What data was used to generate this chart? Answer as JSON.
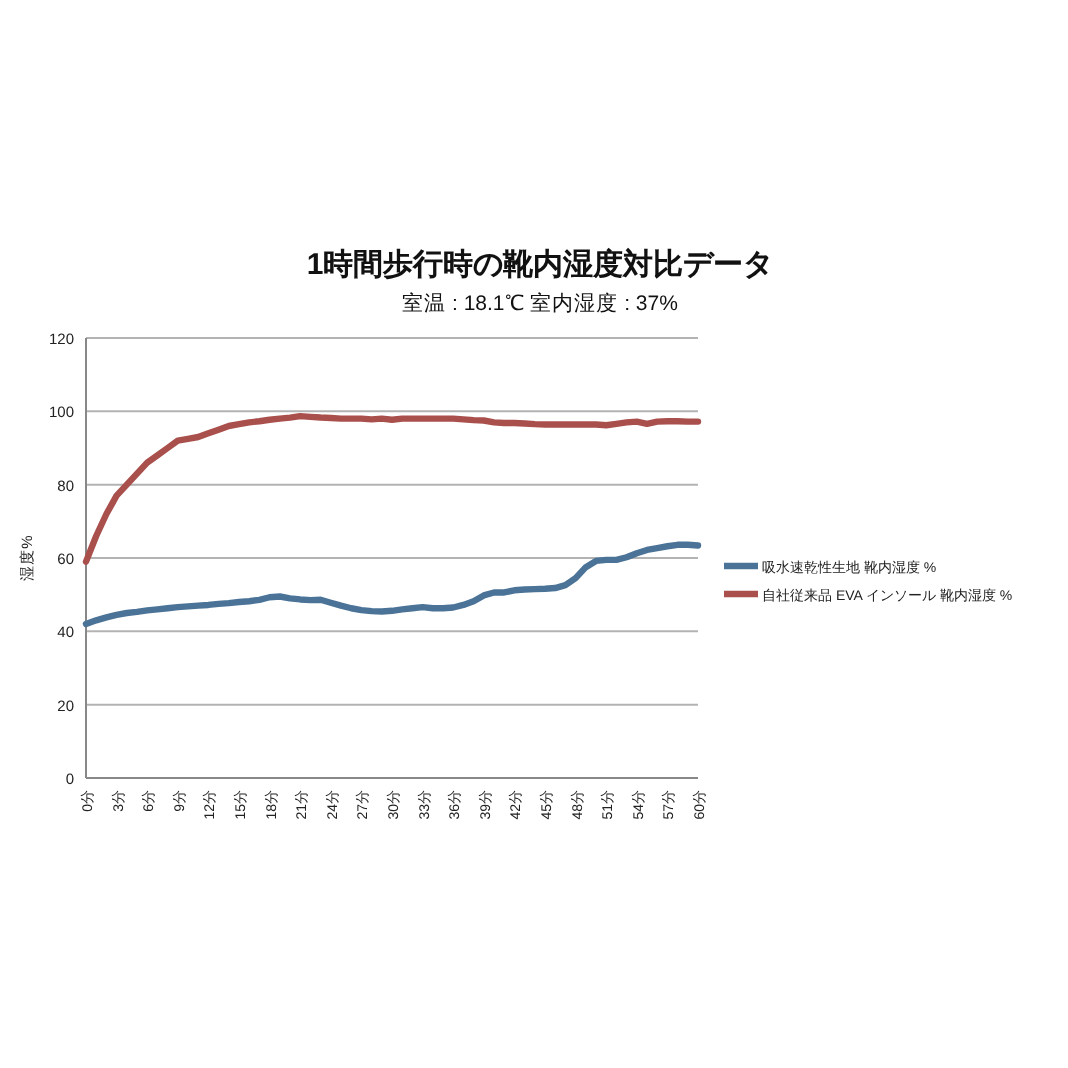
{
  "chart_data": {
    "type": "line",
    "title": "1時間歩行時の靴内湿度対比データ",
    "subtitle": "室温 : 18.1℃  室内湿度 : 37%",
    "ylabel": "湿度%",
    "categories": [
      "0分",
      null,
      null,
      "3分",
      null,
      null,
      "6分",
      null,
      null,
      "9分",
      null,
      null,
      "12分",
      null,
      null,
      "15分",
      null,
      null,
      "18分",
      null,
      null,
      "21分",
      null,
      null,
      "24分",
      null,
      null,
      "27分",
      null,
      null,
      "30分",
      null,
      null,
      "33分",
      null,
      null,
      "36分",
      null,
      null,
      "39分",
      null,
      null,
      "42分",
      null,
      null,
      "45分",
      null,
      null,
      "48分",
      null,
      null,
      "51分",
      null,
      null,
      "54分",
      null,
      null,
      "57分",
      null,
      null,
      "60分"
    ],
    "series": [
      {
        "name": "吸水速乾性生地 靴内湿度 %",
        "color": "#4a7397",
        "values": [
          42,
          43,
          43.8,
          44.5,
          45,
          45.3,
          45.7,
          46,
          46.3,
          46.6,
          46.8,
          47,
          47.2,
          47.5,
          47.7,
          48,
          48.2,
          48.6,
          49.3,
          49.5,
          49,
          48.7,
          48.5,
          48.6,
          47.8,
          47,
          46.3,
          45.8,
          45.5,
          45.4,
          45.6,
          46,
          46.3,
          46.6,
          46.3,
          46.3,
          46.5,
          47.2,
          48.2,
          49.8,
          50.6,
          50.6,
          51.2,
          51.4,
          51.5,
          51.6,
          51.8,
          52.6,
          54.5,
          57.5,
          59.2,
          59.5,
          59.5,
          60.2,
          61.3,
          62.2,
          62.7,
          63.2,
          63.6,
          63.6,
          63.4
        ]
      },
      {
        "name": "自社従来品 EVA インソール 靴内湿度 %",
        "color": "#a9504d",
        "values": [
          59,
          66,
          72,
          77,
          80,
          83,
          86,
          88,
          90,
          92,
          92.5,
          93,
          94,
          95,
          96,
          96.5,
          97,
          97.3,
          97.7,
          98,
          98.3,
          98.7,
          98.5,
          98.3,
          98.2,
          98,
          98,
          98,
          97.8,
          98,
          97.7,
          98,
          98,
          98,
          98,
          98,
          98,
          97.8,
          97.6,
          97.5,
          97,
          96.8,
          96.8,
          96.7,
          96.5,
          96.4,
          96.4,
          96.4,
          96.4,
          96.4,
          96.4,
          96.2,
          96.6,
          97,
          97.2,
          96.6,
          97.2,
          97.3,
          97.3,
          97.2,
          97.2
        ]
      }
    ],
    "ylim": [
      0,
      120
    ],
    "yticks": [
      0,
      20,
      40,
      60,
      80,
      100,
      120
    ],
    "grid": "y",
    "legend": "right",
    "marker": "none",
    "line_style": "solid"
  }
}
